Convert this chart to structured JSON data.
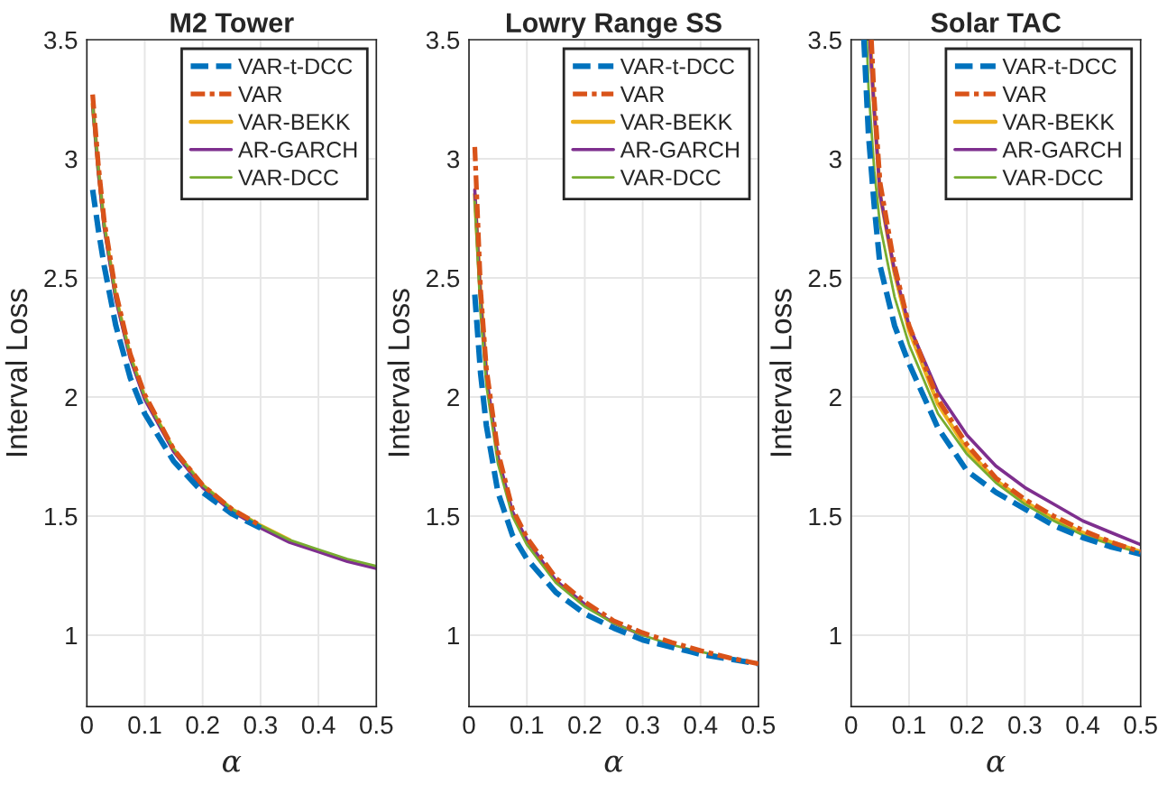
{
  "chart_data": [
    {
      "type": "line",
      "title": "M2 Tower",
      "xlabel": "α",
      "ylabel": "Interval Loss",
      "xlim": [
        0,
        0.5
      ],
      "ylim": [
        0.7,
        3.5
      ],
      "xticks": [
        0,
        0.1,
        0.2,
        0.3,
        0.4,
        0.5
      ],
      "yticks": [
        1,
        1.5,
        2,
        2.5,
        3,
        3.5
      ],
      "grid": true,
      "legend": "top right",
      "marker": "none",
      "x": [
        0.01,
        0.02,
        0.03,
        0.05,
        0.075,
        0.1,
        0.15,
        0.2,
        0.25,
        0.3,
        0.35,
        0.4,
        0.45,
        0.5
      ],
      "series": [
        {
          "name": "VAR-t-DCC",
          "color": "#0072bd",
          "line_style": "dashed",
          "values": [
            2.87,
            2.7,
            2.55,
            2.3,
            2.08,
            1.93,
            1.73,
            1.6,
            1.51,
            1.45,
            null,
            null,
            null,
            null
          ]
        },
        {
          "name": "VAR",
          "color": "#d95319",
          "line_style": "dashdot",
          "values": [
            3.27,
            2.97,
            2.74,
            2.44,
            2.18,
            2.01,
            1.78,
            1.63,
            1.53,
            1.46,
            null,
            null,
            null,
            null
          ]
        },
        {
          "name": "VAR-BEKK",
          "color": "#edb120",
          "line_style": "solid",
          "values": [
            3.23,
            2.95,
            2.72,
            2.42,
            2.17,
            2.0,
            1.78,
            1.63,
            1.53,
            1.46,
            1.4,
            null,
            null,
            null
          ]
        },
        {
          "name": "AR-GARCH",
          "color": "#7e2f8e",
          "line_style": "solid",
          "values": [
            3.22,
            2.94,
            2.71,
            2.41,
            2.16,
            1.99,
            1.77,
            1.62,
            1.52,
            1.45,
            1.39,
            1.35,
            1.31,
            1.28
          ]
        },
        {
          "name": "VAR-DCC",
          "color": "#77ac30",
          "line_style": "solid",
          "values": [
            3.22,
            2.95,
            2.72,
            2.42,
            2.17,
            2.0,
            1.78,
            1.63,
            1.53,
            1.46,
            1.4,
            1.36,
            1.32,
            1.29
          ]
        }
      ]
    },
    {
      "type": "line",
      "title": "Lowry Range SS",
      "xlabel": "α",
      "ylabel": "Interval Loss",
      "xlim": [
        0,
        0.5
      ],
      "ylim": [
        0.7,
        3.5
      ],
      "xticks": [
        0,
        0.1,
        0.2,
        0.3,
        0.4,
        0.5
      ],
      "yticks": [
        1,
        1.5,
        2,
        2.5,
        3,
        3.5
      ],
      "grid": true,
      "legend": "top right",
      "marker": "none",
      "x": [
        0.01,
        0.02,
        0.03,
        0.05,
        0.075,
        0.1,
        0.15,
        0.2,
        0.25,
        0.3,
        0.35,
        0.4,
        0.45,
        0.5
      ],
      "series": [
        {
          "name": "VAR-t-DCC",
          "color": "#0072bd",
          "line_style": "dashed",
          "values": [
            2.43,
            2.1,
            1.88,
            1.6,
            1.42,
            1.32,
            1.18,
            1.09,
            1.03,
            0.98,
            0.95,
            0.92,
            0.9,
            0.88
          ]
        },
        {
          "name": "VAR",
          "color": "#d95319",
          "line_style": "dashdot",
          "values": [
            3.05,
            2.45,
            2.12,
            1.77,
            1.53,
            1.41,
            1.24,
            1.14,
            1.06,
            1.01,
            0.97,
            0.935,
            0.905,
            0.88
          ]
        },
        {
          "name": "VAR-BEKK",
          "color": "#edb120",
          "line_style": "solid",
          "values": [
            2.85,
            2.43,
            2.11,
            null,
            null,
            null,
            null,
            null,
            null,
            null,
            null,
            null,
            null,
            null
          ]
        },
        {
          "name": "AR-GARCH",
          "color": "#7e2f8e",
          "line_style": "solid",
          "values": [
            2.87,
            2.4,
            2.09,
            1.75,
            1.52,
            1.4,
            1.23,
            1.13,
            1.05,
            1.0,
            null,
            null,
            null,
            null
          ]
        },
        {
          "name": "VAR-DCC",
          "color": "#77ac30",
          "line_style": "solid",
          "values": [
            2.82,
            2.35,
            2.05,
            1.72,
            1.5,
            1.38,
            1.22,
            1.12,
            1.05,
            1.0,
            0.96,
            0.93,
            0.905,
            0.88
          ]
        }
      ]
    },
    {
      "type": "line",
      "title": "Solar TAC",
      "xlabel": "α",
      "ylabel": "Interval Loss",
      "xlim": [
        0,
        0.5
      ],
      "ylim": [
        0.7,
        3.5
      ],
      "xticks": [
        0,
        0.1,
        0.2,
        0.3,
        0.4,
        0.5
      ],
      "yticks": [
        1,
        1.5,
        2,
        2.5,
        3,
        3.5
      ],
      "grid": true,
      "legend": "top right",
      "marker": "none",
      "series": [
        {
          "name": "VAR-t-DCC",
          "color": "#0072bd",
          "line_style": "dashed",
          "x": [
            0.022,
            0.03,
            0.04,
            0.05,
            0.075,
            0.1,
            0.15,
            0.2,
            0.25,
            0.3,
            0.35,
            0.4,
            0.45,
            0.5
          ],
          "values": [
            3.5,
            3.1,
            2.8,
            2.55,
            2.3,
            2.14,
            1.87,
            1.69,
            1.6,
            1.53,
            1.46,
            1.41,
            1.37,
            1.34
          ]
        },
        {
          "name": "VAR",
          "color": "#d95319",
          "line_style": "dashdot",
          "x": [
            0.035,
            0.04,
            0.05,
            0.075,
            0.1,
            0.15,
            0.2,
            0.25,
            0.3,
            0.35,
            0.4,
            0.45,
            0.5
          ],
          "values": [
            3.5,
            3.25,
            2.9,
            2.55,
            2.3,
            1.99,
            1.8,
            1.66,
            1.57,
            1.5,
            1.44,
            1.39,
            1.35
          ]
        },
        {
          "name": "VAR-BEKK",
          "color": "#edb120",
          "line_style": "solid",
          "x": [
            0.033,
            0.04,
            0.05,
            0.075,
            0.1,
            0.15,
            0.2,
            0.25,
            0.3,
            0.35,
            0.4,
            0.45,
            0.5
          ],
          "values": [
            3.5,
            3.2,
            2.85,
            2.52,
            2.28,
            1.97,
            1.78,
            1.65,
            1.56,
            1.49,
            1.43,
            1.39,
            1.35
          ]
        },
        {
          "name": "AR-GARCH",
          "color": "#7e2f8e",
          "line_style": "solid",
          "x": [
            0.032,
            0.04,
            0.05,
            0.075,
            0.1,
            0.15,
            0.2,
            0.25,
            0.3,
            0.35,
            0.4,
            0.45,
            0.5
          ],
          "values": [
            3.5,
            3.2,
            2.85,
            2.53,
            2.3,
            2.02,
            1.84,
            1.71,
            1.62,
            1.55,
            1.48,
            1.43,
            1.38
          ]
        },
        {
          "name": "VAR-DCC",
          "color": "#77ac30",
          "line_style": "solid",
          "x": [
            0.027,
            0.03,
            0.04,
            0.05,
            0.075,
            0.1,
            0.15,
            0.2,
            0.25,
            0.3,
            0.35,
            0.4,
            0.45,
            0.5
          ],
          "values": [
            3.5,
            3.3,
            2.95,
            2.72,
            2.42,
            2.22,
            1.93,
            1.76,
            1.64,
            1.55,
            1.48,
            1.42,
            1.38,
            1.345
          ]
        }
      ]
    }
  ]
}
